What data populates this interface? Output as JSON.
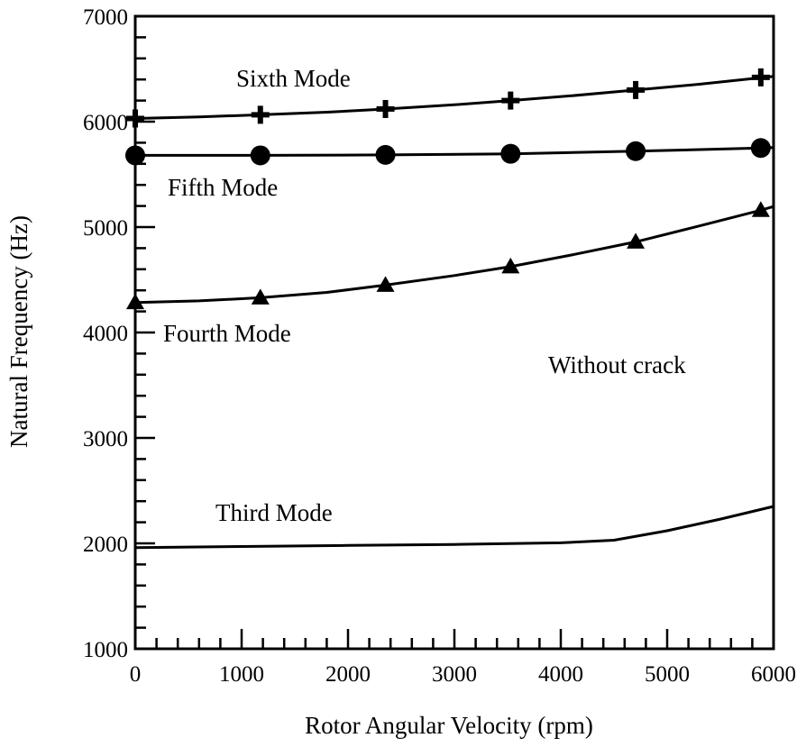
{
  "chart_data": {
    "type": "line",
    "xlabel": "Rotor Angular Velocity (rpm)",
    "ylabel": "Natural Frequency (Hz)",
    "xlim": [
      0,
      6000
    ],
    "ylim": [
      1000,
      7000
    ],
    "x_ticks": [
      "0",
      "1000",
      "2000",
      "3000",
      "4000",
      "5000",
      "6000"
    ],
    "y_ticks": [
      "1000",
      "2000",
      "3000",
      "4000",
      "5000",
      "6000",
      "7000"
    ],
    "x_minor_step": 200,
    "y_minor_step": 200,
    "grid": false,
    "annotations": [
      "Sixth Mode",
      "Fifth Mode",
      "Fourth Mode",
      "Third Mode",
      "Without crack"
    ],
    "series": [
      {
        "name": "Sixth Mode",
        "marker": "plus",
        "x": [
          0,
          1176,
          2352,
          3528,
          4704,
          5880
        ],
        "y": [
          6030,
          6065,
          6120,
          6200,
          6300,
          6420
        ],
        "line_x": [
          0,
          600,
          1176,
          1800,
          2352,
          3000,
          3528,
          4100,
          4704,
          5300,
          6000
        ],
        "line_y": [
          6030,
          6045,
          6065,
          6090,
          6120,
          6160,
          6200,
          6245,
          6300,
          6355,
          6430
        ]
      },
      {
        "name": "Fifth Mode",
        "marker": "circle",
        "x": [
          0,
          1176,
          2352,
          3528,
          4704,
          5880
        ],
        "y": [
          5680,
          5680,
          5685,
          5695,
          5720,
          5750
        ],
        "line_x": [
          0,
          1176,
          2352,
          3528,
          4704,
          5880,
          6000
        ],
        "line_y": [
          5680,
          5680,
          5685,
          5695,
          5720,
          5750,
          5755
        ]
      },
      {
        "name": "Fourth Mode",
        "marker": "triangle",
        "x": [
          0,
          1176,
          2352,
          3528,
          4704,
          5880
        ],
        "y": [
          4285,
          4330,
          4450,
          4625,
          4860,
          5160
        ],
        "line_x": [
          0,
          600,
          1176,
          1800,
          2352,
          3000,
          3528,
          4100,
          4704,
          5300,
          5880,
          6000
        ],
        "line_y": [
          4285,
          4300,
          4330,
          4380,
          4450,
          4540,
          4625,
          4735,
          4860,
          5010,
          5160,
          5195
        ]
      },
      {
        "name": "Third Mode",
        "marker": "none",
        "x": [],
        "y": [],
        "line_x": [
          0,
          1000,
          2000,
          3000,
          4000,
          4500,
          5000,
          5500,
          6000
        ],
        "line_y": [
          1960,
          1970,
          1980,
          1990,
          2005,
          2030,
          2120,
          2230,
          2350
        ]
      }
    ]
  }
}
